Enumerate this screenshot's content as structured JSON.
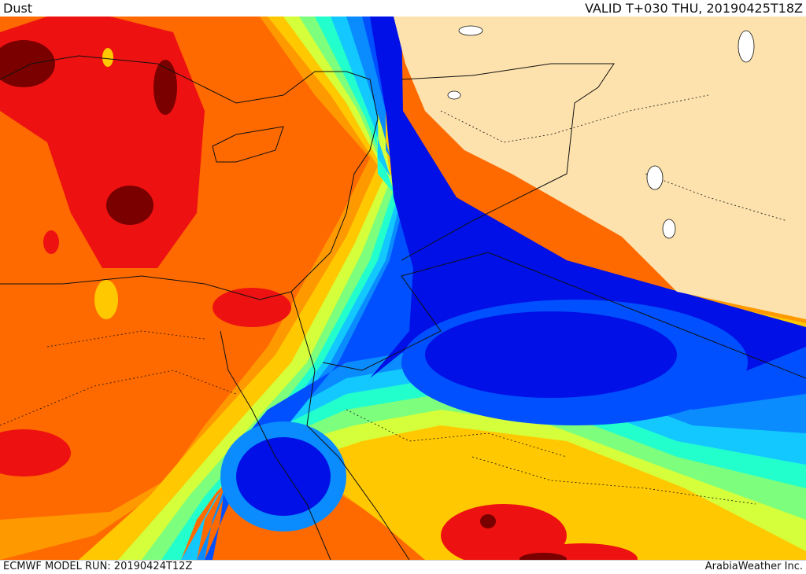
{
  "header": {
    "title": "Dust",
    "valid": "VALID T+030 THU, 20190425T18Z"
  },
  "footer": {
    "model_run": "ECMWF MODEL RUN: 20190424T12Z",
    "credit": "ArabiaWeather Inc."
  },
  "palette": {
    "land_masked": "#fde2ad",
    "maroon": "#7a0000",
    "red": "#ee1111",
    "orange": "#ff6a00",
    "amber": "#ff9900",
    "yellow": "#ffc800",
    "lime": "#d4ff3a",
    "green": "#7dff7d",
    "aqua": "#22ffcc",
    "cyan": "#12c8ff",
    "sky": "#0a8cff",
    "blue": "#0050ff",
    "deep_blue": "#0010e6",
    "border_line": "#111111"
  }
}
